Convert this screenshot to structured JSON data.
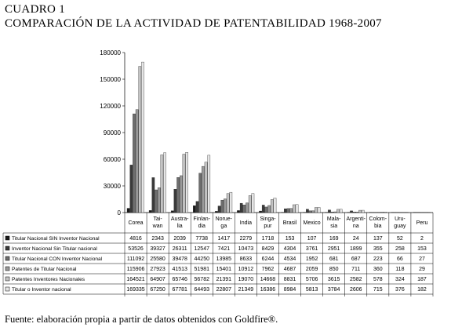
{
  "header": {
    "label": "CUADRO 1",
    "title": "COMPARACIÓN DE LA ACTIVIDAD DE PATENTABILIDAD 1968-2007"
  },
  "source": "Fuente: elaboración propia a partir de datos obtenidos con Goldfire®.",
  "chart_data": {
    "type": "bar",
    "title": "COMPARACIÓN DE LA ACTIVIDAD DE PATENTABILIDAD 1968-2007",
    "xlabel": "",
    "ylabel": "",
    "ylim": [
      0,
      180000
    ],
    "yticks": [
      0,
      30000,
      60000,
      90000,
      120000,
      150000,
      180000
    ],
    "grid": false,
    "legend": "table-below",
    "categories": [
      [
        "Corea"
      ],
      [
        "Tai-",
        "wan"
      ],
      [
        "Austra-",
        "lia"
      ],
      [
        "Finlan-",
        "dia"
      ],
      [
        "Norue-",
        "ga"
      ],
      [
        "India"
      ],
      [
        "Singa-",
        "pur"
      ],
      [
        "Brasil"
      ],
      [
        "Mexico"
      ],
      [
        "Mala-",
        "sia"
      ],
      [
        "Argenti-",
        "na"
      ],
      [
        "Colom-",
        "bia"
      ],
      [
        "Uru-",
        "guay"
      ],
      [
        "Peru"
      ]
    ],
    "series": [
      {
        "name": "Titular Nacional SIN Inventor Nacional",
        "color": "#1a1a1a",
        "values": [
          4816,
          2343,
          2039,
          7738,
          1417,
          2279,
          1718,
          153,
          107,
          169,
          24,
          137,
          52,
          2
        ]
      },
      {
        "name": "Inventor Nacional Sin Titular nacional",
        "color": "#3a3a3a",
        "values": [
          53526,
          39327,
          26311,
          12547,
          7421,
          10473,
          8429,
          4304,
          3761,
          2951,
          1899,
          355,
          258,
          153
        ]
      },
      {
        "name": "Titular Nacional CON Inventor Nacional",
        "color": "#6e6e6e",
        "values": [
          111092,
          25580,
          39478,
          44250,
          13985,
          8633,
          6244,
          4534,
          1952,
          681,
          687,
          223,
          66,
          27
        ]
      },
      {
        "name": "Patentes de Titular Nacional",
        "color": "#9a9a9a",
        "values": [
          115906,
          27923,
          41513,
          51981,
          15401,
          10912,
          7962,
          4687,
          2059,
          850,
          711,
          360,
          118,
          29
        ]
      },
      {
        "name": "Patentes Inventores Nacionales",
        "color": "#c4c4c4",
        "values": [
          164521,
          64907,
          65746,
          56782,
          21391,
          19070,
          14668,
          8831,
          5706,
          3615,
          2582,
          578,
          324,
          187
        ]
      },
      {
        "name": "Titular o Inventor nacional",
        "color": "#e6e6e6",
        "values": [
          169335,
          67250,
          67781,
          64493,
          22807,
          21349,
          16386,
          8984,
          5813,
          3784,
          2606,
          715,
          376,
          182
        ]
      }
    ]
  }
}
